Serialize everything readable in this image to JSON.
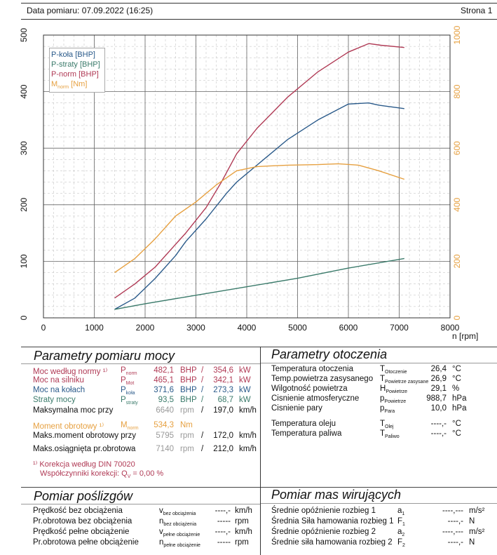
{
  "header": {
    "date_label": "Data pomiaru: 07.09.2022 (16:25)",
    "page_label": "Strona 1"
  },
  "chart_data": {
    "type": "line",
    "x_ticks": [
      "0",
      "1000",
      "2000",
      "3000",
      "4000",
      "5000",
      "6000",
      "7000",
      "8000"
    ],
    "y_left_ticks": [
      "0",
      "100",
      "200",
      "300",
      "400",
      "500"
    ],
    "y_right_ticks": [
      "0",
      "200",
      "400",
      "600",
      "800",
      "1000"
    ],
    "xlabel": "n [rpm]",
    "xlim": [
      0,
      8000
    ],
    "ylim_left": [
      0,
      500
    ],
    "ylim_right": [
      0,
      1000
    ],
    "grid": true,
    "legend_position": "top-left",
    "series": [
      {
        "name": "P-koła [BHP]",
        "color": "#2a5a8a",
        "axis": "left",
        "x": [
          1400,
          1800,
          2200,
          2600,
          2800,
          3200,
          3600,
          3800,
          4200,
          4800,
          5400,
          6000,
          6400,
          6600,
          7100
        ],
        "y": [
          15,
          35,
          70,
          110,
          135,
          175,
          220,
          240,
          270,
          315,
          350,
          378,
          380,
          376,
          370
        ]
      },
      {
        "name": "P-straty [BHP]",
        "color": "#3a7a6a",
        "axis": "left",
        "x": [
          1400,
          2000,
          3000,
          4000,
          5000,
          6000,
          7100
        ],
        "y": [
          15,
          25,
          40,
          55,
          70,
          88,
          105
        ]
      },
      {
        "name": "P-norm [BHP]",
        "color": "#b03a55",
        "axis": "left",
        "x": [
          1400,
          1800,
          2200,
          2600,
          2800,
          3200,
          3500,
          3800,
          4200,
          4800,
          5400,
          6000,
          6400,
          6640,
          7100
        ],
        "y": [
          35,
          60,
          90,
          130,
          150,
          195,
          240,
          290,
          335,
          390,
          435,
          470,
          485,
          482,
          478
        ]
      },
      {
        "name": "M",
        "color": "#e6a040",
        "axis": "right",
        "x": [
          1400,
          1800,
          2200,
          2600,
          3000,
          3400,
          3800,
          4200,
          4800,
          5400,
          5800,
          6200,
          6600,
          7100
        ],
        "y": [
          160,
          210,
          280,
          360,
          410,
          470,
          520,
          535,
          540,
          542,
          545,
          540,
          520,
          490
        ]
      }
    ]
  },
  "legend": {
    "p_kola": "P-koła [BHP]",
    "p_straty": "P-straty [BHP]",
    "p_norm": "P-norm [BHP]",
    "m_norm": "M",
    "m_norm_sub": "norm",
    "m_norm_unit": " [Nm]"
  },
  "moc": {
    "title": "Parametry pomiaru mocy",
    "rows": [
      {
        "label": "Moc według normy ¹⁾",
        "sym": "P",
        "sub": "norm",
        "v1": "482,1",
        "u1": "BHP",
        "v2": "354,6",
        "u2": "kW",
        "cls": "c-norm"
      },
      {
        "label": "Moc na silniku",
        "sym": "P",
        "sub": "Mot",
        "v1": "465,1",
        "u1": "BHP",
        "v2": "342,1",
        "u2": "kW",
        "cls": "c-mot"
      },
      {
        "label": "Moc na kołach",
        "sym": "P",
        "sub": "koła",
        "v1": "371,6",
        "u1": "BHP",
        "v2": "273,3",
        "u2": "kW",
        "cls": "c-kola"
      },
      {
        "label": "Straty mocy",
        "sym": "P",
        "sub": "straty",
        "v1": "93,5",
        "u1": "BHP",
        "v2": "68,7",
        "u2": "kW",
        "cls": "c-str"
      }
    ],
    "max_power_label": "Maksymalna moc przy",
    "max_power_rpm": "6640",
    "rpm_unit": "rpm",
    "max_power_speed": "197,0",
    "speed_unit": "km/h",
    "torque_label": "Moment obrotowy ¹⁾",
    "torque_sym": "M",
    "torque_sub": "norm",
    "torque_val": "534,3",
    "torque_unit": "Nm",
    "max_torque_label": "Maks.moment obrotowy przy",
    "max_torque_rpm": "5795",
    "max_torque_speed": "172,0",
    "max_rpm_label": "Maks.osiągnięta pr.obrotowa",
    "max_rpm_rpm": "7140",
    "max_rpm_speed": "212,0",
    "footnote1": "¹⁾ Korekcja według DIN 70020",
    "footnote2": "Współczynniki korekcji: Q",
    "footnote2_sub": "V",
    "footnote2_val": "= 0,00 %"
  },
  "otoczenie": {
    "title": "Parametry otoczenia",
    "rows": [
      {
        "label": "Temperatura otoczenia",
        "sym": "T",
        "sub": "Otoczenie",
        "val": "26,4",
        "unit": "°C"
      },
      {
        "label": "Temp.powietrza zasysanego",
        "sym": "T",
        "sub": "Powietrze zasysane",
        "val": "26,9",
        "unit": "°C"
      },
      {
        "label": "Wilgotność powietrza",
        "sym": "H",
        "sub": "Powietrze",
        "val": "29,1",
        "unit": "%"
      },
      {
        "label": "Cisnienie atmosferyczne",
        "sym": "p",
        "sub": "Powietrze",
        "val": "988,7",
        "unit": "hPa"
      },
      {
        "label": "Cisnienie pary",
        "sym": "p",
        "sub": "Para",
        "val": "10,0",
        "unit": "hPa"
      }
    ],
    "rows2": [
      {
        "label": "Temperatura oleju",
        "sym": "T",
        "sub": "Olej",
        "val": "----,-",
        "unit": "°C"
      },
      {
        "label": "Temperatura paliwa",
        "sym": "T",
        "sub": "Paliwo",
        "val": "----,-",
        "unit": "°C"
      }
    ]
  },
  "posliz": {
    "title": "Pomiar poślizgów",
    "rows": [
      {
        "label": "Prędkość bez obciążenia",
        "sym": "v",
        "sub": "bez obciążenia",
        "val": "----,-",
        "unit": "km/h"
      },
      {
        "label": "Pr.obrotowa bez obciążenia",
        "sym": "n",
        "sub": "bez obciążenia",
        "val": "-----",
        "unit": "rpm"
      },
      {
        "label": "Prędkość pełne obciążenie",
        "sym": "v",
        "sub": "pełne obciążenie",
        "val": "----,-",
        "unit": "km/h"
      },
      {
        "label": "Pr.obrotowa pełne obciążenie",
        "sym": "n",
        "sub": "pełne obciążenie",
        "val": "-----",
        "unit": "rpm"
      }
    ]
  },
  "masy": {
    "title": "Pomiar mas wirujących",
    "rows": [
      {
        "label": "Średnie opóźnienie rozbieg 1",
        "sym": "a",
        "sub": "1",
        "val": "----,---",
        "unit": "m/s²"
      },
      {
        "label": "Średnia Siła hamowania rozbieg 1",
        "sym": "F",
        "sub": "1",
        "val": "----,-",
        "unit": "N"
      },
      {
        "label": "Średnie opóźnienie rozbieg 2",
        "sym": "a",
        "sub": "2",
        "val": "----,---",
        "unit": "m/s²"
      },
      {
        "label": "Średnie siła hamowania rozbieg 2",
        "sym": "F",
        "sub": "2",
        "val": "----,-",
        "unit": "N"
      }
    ]
  }
}
